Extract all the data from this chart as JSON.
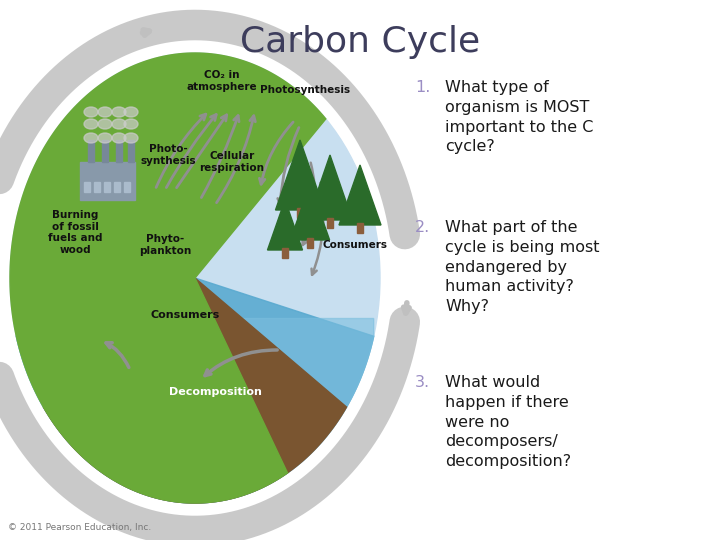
{
  "title": "Carbon Cycle",
  "title_color": "#3d3d5c",
  "title_fontsize": 26,
  "background_color": "#ffffff",
  "questions": [
    {
      "number": "1.",
      "number_color": "#9b8ec4",
      "text": "What type of\norganism is MOST\nimportant to the C\ncycle?",
      "text_color": "#1a1a1a"
    },
    {
      "number": "2.",
      "number_color": "#9b8ec4",
      "text": "What part of the\ncycle is being most\nendangered by\nhuman activity?\nWhy?",
      "text_color": "#1a1a1a"
    },
    {
      "number": "3.",
      "number_color": "#9b8ec4",
      "text": "What would\nhappen if there\nwere no\ndecomposers/\ndecomposition?",
      "text_color": "#1a1a1a"
    }
  ],
  "question_fontsize": 11.5,
  "footer_text": "© 2011 Pearson Education, Inc.",
  "footer_color": "#777777",
  "footer_fontsize": 6.5,
  "outer_arrow_color": "#c0c0c0",
  "inner_sky_color": "#c8dff0",
  "water_color": "#5aaad0",
  "water2_color": "#7bbede",
  "ground_color": "#7a5530",
  "land_color": "#6aaa38",
  "arrow_color": "#909090",
  "label_color": "#111111"
}
